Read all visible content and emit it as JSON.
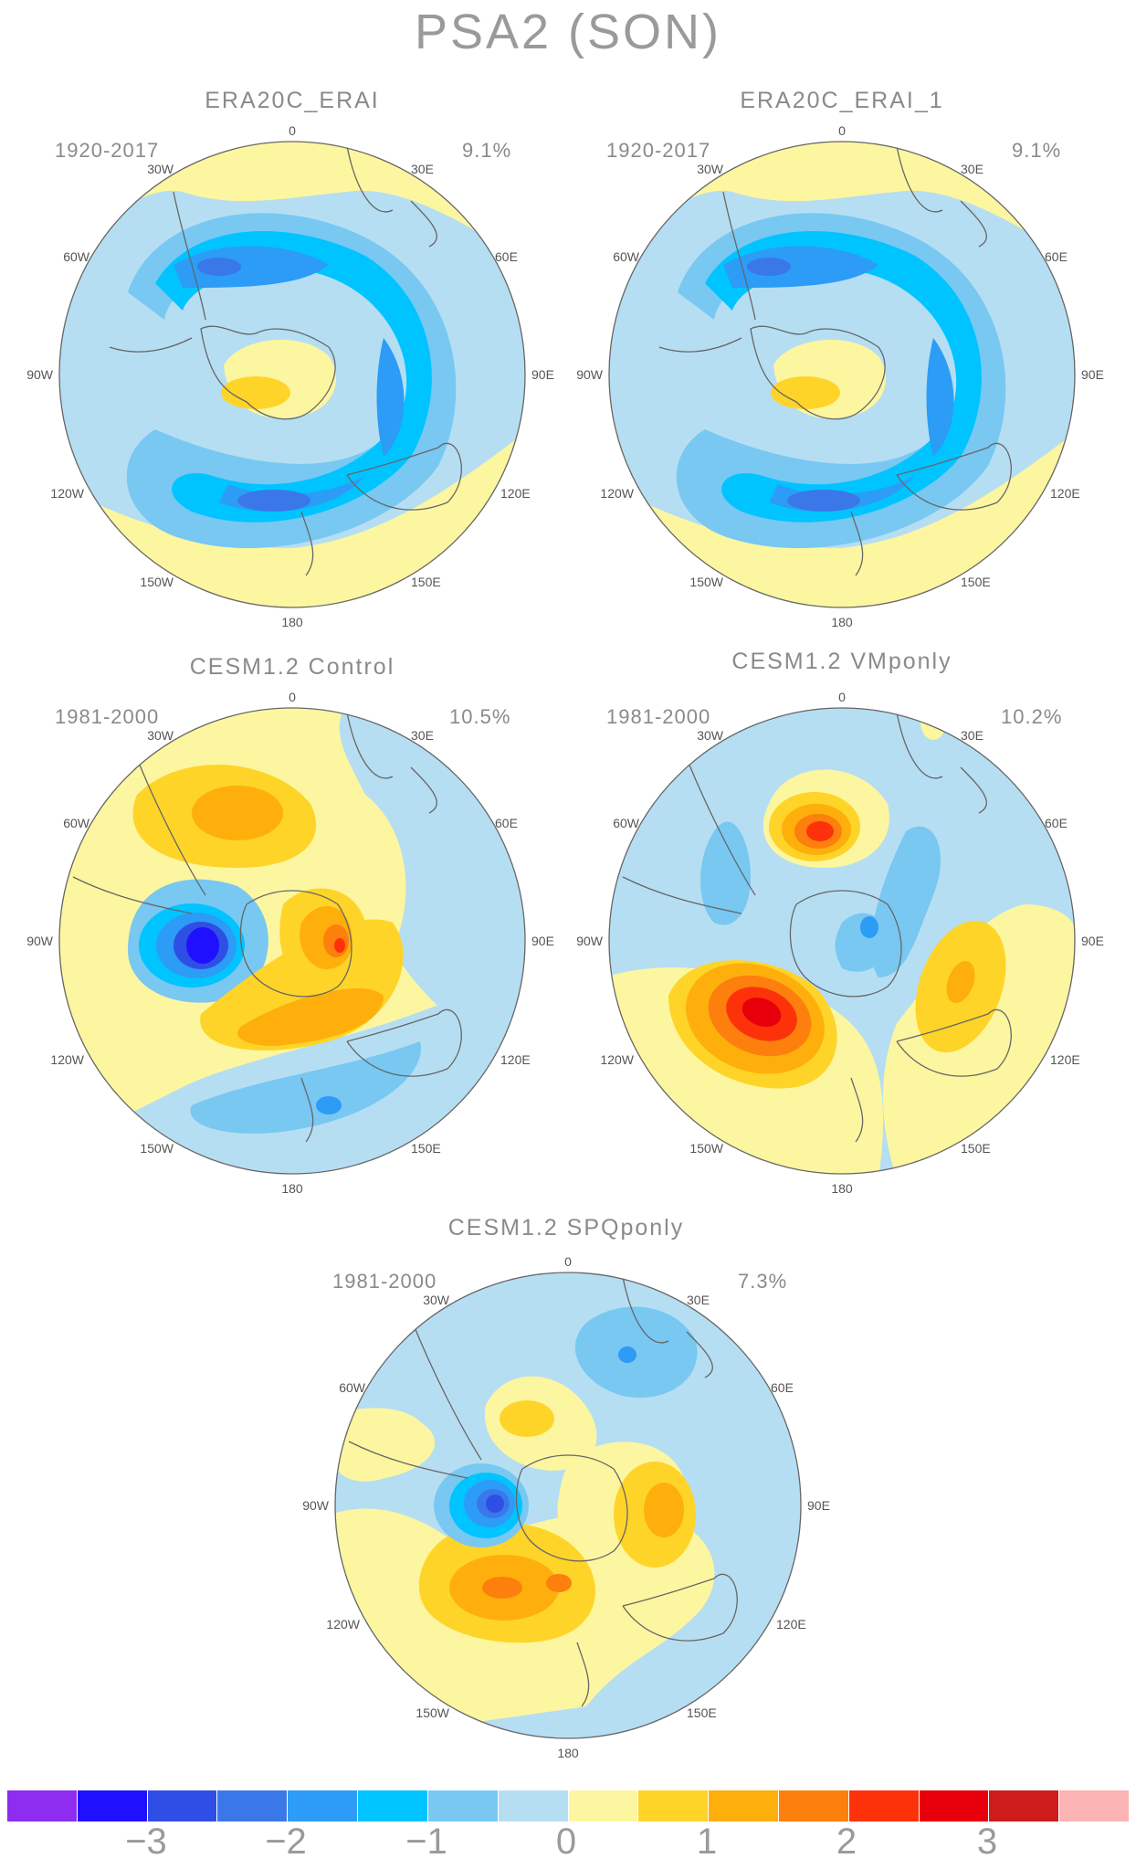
{
  "title": "PSA2 (SON)",
  "colorbar": {
    "colors": [
      "#8e2cf0",
      "#1f10ff",
      "#2f4ee6",
      "#3a78ea",
      "#2c9cf6",
      "#00c4ff",
      "#78c8f2",
      "#b6def2",
      "#fdf6a0",
      "#fed429",
      "#feaf0b",
      "#fd7f0d",
      "#fd320a",
      "#e7000b",
      "#cc1c1c",
      "#fbb3b3"
    ],
    "labels": [
      "−3",
      "−2",
      "−1",
      "0",
      "1",
      "2",
      "3"
    ]
  },
  "panels": [
    {
      "title": "ERA20C_ERAI",
      "period": "1920-2017",
      "variance": "9.1%"
    },
    {
      "title": "ERA20C_ERAI_1",
      "period": "1920-2017",
      "variance": "9.1%"
    },
    {
      "title": "CESM1.2 Control",
      "period": "1981-2000",
      "variance": "10.5%"
    },
    {
      "title": "CESM1.2 VMponly",
      "period": "1981-2000",
      "variance": "10.2%"
    },
    {
      "title": "CESM1.2 SPQponly",
      "period": "1981-2000",
      "variance": "7.3%"
    }
  ],
  "longitude_labels": [
    "0",
    "30E",
    "60E",
    "90E",
    "120E",
    "150E",
    "180",
    "150W",
    "120W",
    "90W",
    "60W",
    "30W"
  ]
}
